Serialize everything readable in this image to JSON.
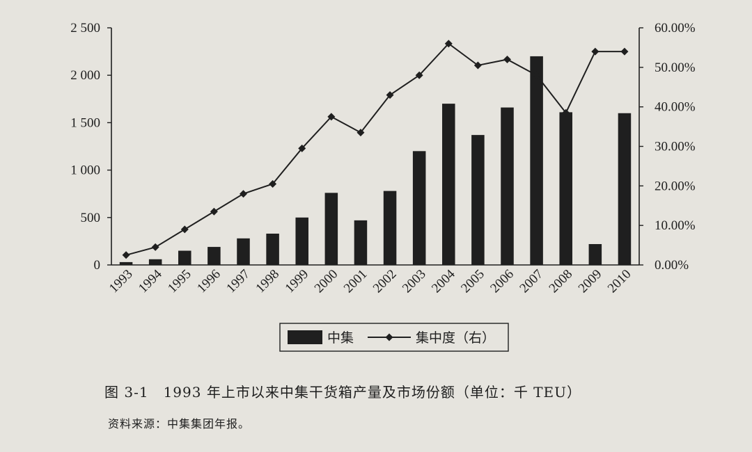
{
  "chart_data": {
    "type": "bar+line",
    "categories": [
      "1993",
      "1994",
      "1995",
      "1996",
      "1997",
      "1998",
      "1999",
      "2000",
      "2001",
      "2002",
      "2003",
      "2004",
      "2005",
      "2006",
      "2007",
      "2008",
      "2009",
      "2010"
    ],
    "series": [
      {
        "name": "中集",
        "type": "bar",
        "axis": "left",
        "values": [
          30,
          60,
          150,
          190,
          280,
          330,
          500,
          760,
          470,
          780,
          1200,
          1700,
          1370,
          1660,
          2200,
          1610,
          220,
          1600
        ]
      },
      {
        "name": "集中度（右）",
        "type": "line",
        "axis": "right",
        "values": [
          2.5,
          4.5,
          9.0,
          13.5,
          18.0,
          20.5,
          29.5,
          37.5,
          33.5,
          43.0,
          48.0,
          56.0,
          50.5,
          52.0,
          48.0,
          38.5,
          54.0,
          54.0
        ]
      }
    ],
    "left_axis": {
      "ylim": [
        0,
        2500
      ],
      "ticks": [
        "0",
        "500",
        "1 000",
        "1 500",
        "2 000",
        "2 500"
      ]
    },
    "right_axis": {
      "ylim": [
        0,
        60
      ],
      "ticks": [
        "0.00%",
        "10.00%",
        "20.00%",
        "30.00%",
        "40.00%",
        "50.00%",
        "60.00%"
      ]
    },
    "legend": {
      "position": "bottom",
      "bar_label": "中集",
      "line_label": "集中度（右）"
    },
    "colors": {
      "bar": "#1f1f1f",
      "line": "#1f1f1f"
    },
    "grid": false
  },
  "caption": "图 3-1　1993 年上市以来中集干货箱产量及市场份额（单位：千 TEU）",
  "source": "资料来源：中集集团年报。"
}
